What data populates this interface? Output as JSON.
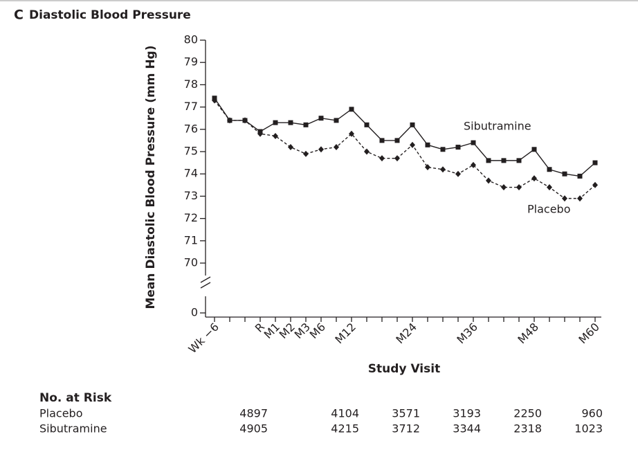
{
  "chart_data": {
    "type": "line",
    "panel_label": "C",
    "title": "Diastolic Blood Pressure",
    "y_label": "Mean Diastolic Blood Pressure (mm Hg)",
    "x_label": "Study Visit",
    "categories": [
      "Wk −6",
      null,
      null,
      "R",
      "M1",
      "M2",
      "M3",
      "M6",
      null,
      "M12",
      null,
      null,
      null,
      "M24",
      null,
      null,
      null,
      "M36",
      null,
      null,
      null,
      "M48",
      null,
      null,
      null,
      "M60"
    ],
    "ylim": [
      0,
      80
    ],
    "yticks": [
      0,
      70,
      71,
      72,
      73,
      74,
      75,
      76,
      77,
      78,
      79,
      80
    ],
    "axis_break": true,
    "series": [
      {
        "name": "Sibutramine",
        "color": "#231f20",
        "marker": "square",
        "dash": false,
        "values": [
          77.4,
          76.4,
          76.4,
          75.9,
          76.3,
          76.3,
          76.2,
          76.5,
          76.4,
          76.9,
          76.2,
          75.5,
          75.5,
          76.2,
          75.3,
          75.1,
          75.2,
          75.4,
          74.6,
          74.6,
          74.6,
          75.1,
          74.2,
          74.0,
          73.9,
          74.5
        ]
      },
      {
        "name": "Placebo",
        "color": "#231f20",
        "marker": "diamond",
        "dash": true,
        "values": [
          77.3,
          76.4,
          76.4,
          75.8,
          75.7,
          75.2,
          74.9,
          75.1,
          75.2,
          75.8,
          75.0,
          74.7,
          74.7,
          75.3,
          74.3,
          74.2,
          74.0,
          74.4,
          73.7,
          73.4,
          73.4,
          73.8,
          73.4,
          72.9,
          72.9,
          73.5
        ]
      }
    ],
    "risk_table": {
      "title": "No. at Risk",
      "rows": [
        {
          "name": "Placebo",
          "values": [
            null,
            null,
            null,
            4897,
            null,
            null,
            null,
            null,
            null,
            4104,
            null,
            null,
            null,
            3571,
            null,
            null,
            null,
            3193,
            null,
            null,
            null,
            2250,
            null,
            null,
            null,
            960
          ]
        },
        {
          "name": "Sibutramine",
          "values": [
            null,
            null,
            null,
            4905,
            null,
            null,
            null,
            null,
            null,
            4215,
            null,
            null,
            null,
            3712,
            null,
            null,
            null,
            3344,
            null,
            null,
            null,
            2318,
            null,
            null,
            null,
            1023
          ]
        }
      ]
    }
  }
}
